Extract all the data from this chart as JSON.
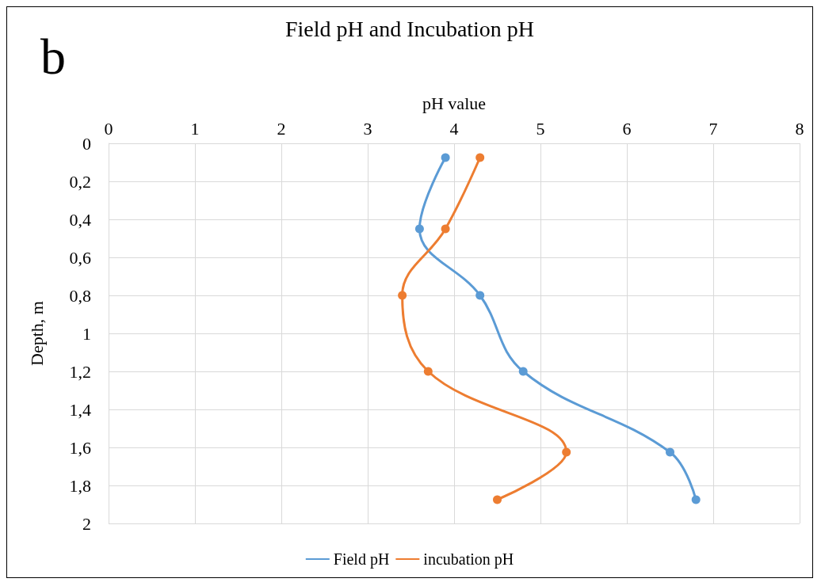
{
  "chart_data": {
    "type": "line",
    "title": "Field pH and Incubation pH",
    "xlabel": "pH value",
    "ylabel": "Depth, m",
    "annotations": [
      "b"
    ],
    "xlim": [
      0,
      8
    ],
    "xticks": [
      0,
      1,
      2,
      3,
      4,
      5,
      6,
      7,
      8
    ],
    "ylim": [
      2,
      0
    ],
    "yticks": [
      {
        "value": 0,
        "label": "0"
      },
      {
        "value": 0.2,
        "label": "0,2"
      },
      {
        "value": 0.4,
        "label": "0,4"
      },
      {
        "value": 0.6,
        "label": "0,6"
      },
      {
        "value": 0.8,
        "label": "0,8"
      },
      {
        "value": 1,
        "label": "1"
      },
      {
        "value": 1.2,
        "label": "1,2"
      },
      {
        "value": 1.4,
        "label": "1,4"
      },
      {
        "value": 1.6,
        "label": "1,6"
      },
      {
        "value": 1.8,
        "label": "1,8"
      },
      {
        "value": 2,
        "label": "2"
      }
    ],
    "series": [
      {
        "name": "Field pH",
        "color": "#5b9bd5",
        "x": [
          3.9,
          3.6,
          4.3,
          4.8,
          6.5,
          6.8
        ],
        "values": [
          0.075,
          0.45,
          0.8,
          1.2,
          1.625,
          1.875
        ]
      },
      {
        "name": "incubation pH",
        "color": "#ed7d31",
        "x": [
          4.3,
          3.9,
          3.4,
          3.7,
          5.3,
          4.5
        ],
        "values": [
          0.075,
          0.45,
          0.8,
          1.2,
          1.625,
          1.875
        ]
      }
    ],
    "grid": true,
    "legend": "bottom",
    "marker": "circle",
    "line_style": "solid"
  }
}
